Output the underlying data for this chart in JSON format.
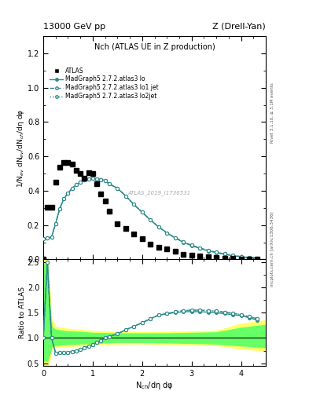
{
  "title_top": "13000 GeV pp",
  "title_top_right": "Z (Drell-Yan)",
  "plot_title": "Nch (ATLAS UE in Z production)",
  "ylabel_main": "1/N$_{ev}$ dN$_{ev}$/dN$_{ch}$/dη dφ",
  "ylabel_ratio": "Ratio to ATLAS",
  "xlabel": "N$_{ch}$/dη dφ",
  "right_label_top": "Rivet 3.1.10, ≥ 3.1M events",
  "right_label_bottom": "mcplots.cern.ch [arXiv:1306.3436]",
  "watermark": "ATLAS_2019_I1736531",
  "atlas_x": [
    0.0,
    0.083,
    0.167,
    0.25,
    0.333,
    0.417,
    0.5,
    0.583,
    0.667,
    0.75,
    0.833,
    0.917,
    1.0,
    1.083,
    1.167,
    1.25,
    1.333,
    1.5,
    1.667,
    1.833,
    2.0,
    2.167,
    2.333,
    2.5,
    2.667,
    2.833,
    3.0,
    3.167,
    3.333,
    3.5,
    3.667,
    3.833,
    4.0,
    4.167,
    4.333
  ],
  "atlas_y": [
    0.0,
    0.305,
    0.305,
    0.45,
    0.535,
    0.565,
    0.565,
    0.555,
    0.52,
    0.5,
    0.475,
    0.505,
    0.5,
    0.44,
    0.38,
    0.34,
    0.28,
    0.21,
    0.18,
    0.15,
    0.12,
    0.09,
    0.07,
    0.06,
    0.05,
    0.03,
    0.025,
    0.02,
    0.015,
    0.012,
    0.008,
    0.005,
    0.003,
    0.002,
    0.001
  ],
  "mc_x": [
    0.0,
    0.083,
    0.167,
    0.25,
    0.333,
    0.417,
    0.5,
    0.583,
    0.667,
    0.75,
    0.833,
    0.917,
    1.0,
    1.083,
    1.167,
    1.25,
    1.333,
    1.5,
    1.667,
    1.833,
    2.0,
    2.167,
    2.333,
    2.5,
    2.667,
    2.833,
    3.0,
    3.167,
    3.333,
    3.5,
    3.667,
    3.833,
    4.0,
    4.167,
    4.333
  ],
  "mc_lo_y": [
    0.12,
    0.125,
    0.13,
    0.21,
    0.295,
    0.355,
    0.385,
    0.415,
    0.435,
    0.45,
    0.465,
    0.47,
    0.475,
    0.47,
    0.465,
    0.46,
    0.44,
    0.415,
    0.37,
    0.32,
    0.275,
    0.23,
    0.19,
    0.155,
    0.125,
    0.1,
    0.08,
    0.065,
    0.05,
    0.04,
    0.03,
    0.022,
    0.016,
    0.01,
    0.007
  ],
  "mc_lo1jet_y": [
    0.12,
    0.125,
    0.13,
    0.21,
    0.295,
    0.355,
    0.385,
    0.415,
    0.435,
    0.45,
    0.465,
    0.47,
    0.475,
    0.47,
    0.465,
    0.46,
    0.44,
    0.415,
    0.37,
    0.32,
    0.275,
    0.23,
    0.19,
    0.155,
    0.127,
    0.103,
    0.083,
    0.067,
    0.053,
    0.042,
    0.032,
    0.024,
    0.017,
    0.011,
    0.008
  ],
  "mc_lo2jet_y": [
    0.12,
    0.125,
    0.13,
    0.21,
    0.295,
    0.355,
    0.385,
    0.415,
    0.435,
    0.45,
    0.465,
    0.47,
    0.475,
    0.47,
    0.465,
    0.46,
    0.44,
    0.415,
    0.37,
    0.32,
    0.275,
    0.23,
    0.19,
    0.155,
    0.127,
    0.103,
    0.083,
    0.067,
    0.053,
    0.042,
    0.032,
    0.024,
    0.017,
    0.011,
    0.008
  ],
  "ratio_lo_y": [
    1.0,
    2.5,
    1.0,
    0.7,
    0.71,
    0.71,
    0.72,
    0.73,
    0.75,
    0.77,
    0.8,
    0.84,
    0.87,
    0.91,
    0.95,
    1.0,
    1.03,
    1.08,
    1.16,
    1.23,
    1.3,
    1.38,
    1.45,
    1.48,
    1.5,
    1.52,
    1.52,
    1.52,
    1.51,
    1.5,
    1.48,
    1.46,
    1.44,
    1.4,
    1.35
  ],
  "ratio_lo1jet_y": [
    1.0,
    2.5,
    1.0,
    0.7,
    0.71,
    0.71,
    0.72,
    0.73,
    0.75,
    0.77,
    0.8,
    0.84,
    0.87,
    0.91,
    0.95,
    1.0,
    1.03,
    1.08,
    1.16,
    1.23,
    1.3,
    1.38,
    1.45,
    1.48,
    1.52,
    1.54,
    1.55,
    1.55,
    1.54,
    1.53,
    1.51,
    1.49,
    1.46,
    1.42,
    1.38
  ],
  "ratio_lo2jet_y": [
    1.0,
    2.5,
    1.0,
    0.7,
    0.71,
    0.71,
    0.72,
    0.73,
    0.75,
    0.77,
    0.8,
    0.84,
    0.87,
    0.91,
    0.95,
    1.0,
    1.03,
    1.08,
    1.16,
    1.23,
    1.3,
    1.38,
    1.45,
    1.48,
    1.52,
    1.54,
    1.55,
    1.55,
    1.54,
    1.53,
    1.51,
    1.49,
    1.46,
    1.42,
    1.38
  ],
  "teal_color": "#2e8b8b",
  "atlas_color": "#000000",
  "band_yellow": "#ffff66",
  "band_green": "#66ff66",
  "xlim": [
    0,
    4.5
  ],
  "ylim_main": [
    0,
    1.3
  ],
  "ylim_ratio": [
    0.45,
    2.55
  ],
  "yticks_main": [
    0.0,
    0.2,
    0.4,
    0.6,
    0.8,
    1.0,
    1.2
  ],
  "yticks_ratio": [
    0.5,
    1.0,
    1.5,
    2.0,
    2.5
  ],
  "xticks": [
    0,
    1,
    2,
    3,
    4
  ]
}
